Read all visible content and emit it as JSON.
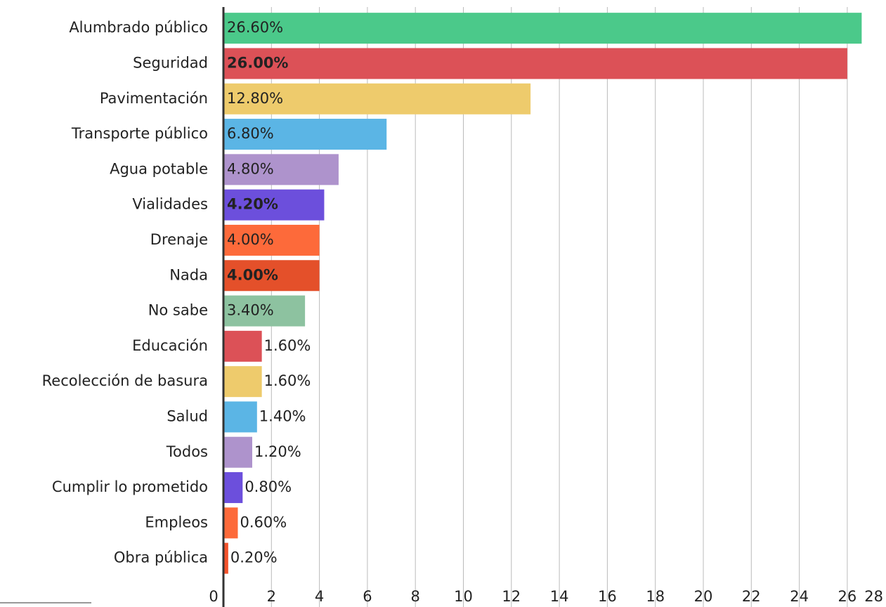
{
  "chart_data": {
    "type": "barh",
    "categories": [
      "Alumbrado público",
      "Seguridad",
      "Pavimentación",
      "Transporte público",
      "Agua potable",
      "Vialidades",
      "Drenaje",
      "Nada",
      "No sabe",
      "Educación",
      "Recolección de basura",
      "Salud",
      "Todos",
      "Cumplir lo prometido",
      "Empleos",
      "Obra pública"
    ],
    "values": [
      26.6,
      26.0,
      12.8,
      6.8,
      4.8,
      4.2,
      4.0,
      4.0,
      3.4,
      1.6,
      1.6,
      1.4,
      1.2,
      0.8,
      0.6,
      0.2
    ],
    "value_labels": [
      "26.60%",
      "26.00%",
      "12.80%",
      "6.80%",
      "4.80%",
      "4.20%",
      "4.00%",
      "4.00%",
      "3.40%",
      "1.60%",
      "1.60%",
      "1.40%",
      "1.20%",
      "0.80%",
      "0.60%",
      "0.20%"
    ],
    "colors": [
      "#4bc98a",
      "#dc5157",
      "#eecb6c",
      "#5bb5e5",
      "#ae93cc",
      "#6c4fdc",
      "#fd6a3a",
      "#e4502a",
      "#8dc2a0",
      "#dc5157",
      "#eecb6c",
      "#5bb5e5",
      "#ae93cc",
      "#6c4fdc",
      "#fd6a3a",
      "#f3522b"
    ],
    "value_label_colors": [
      "#111111",
      "#ffffff",
      "#111111",
      "#111111",
      "#111111",
      "#ffffff",
      "#111111",
      "#ffffff",
      "#111111",
      "#111111",
      "#111111",
      "#111111",
      "#111111",
      "#111111",
      "#111111",
      "#111111"
    ],
    "xlim": [
      0,
      28
    ],
    "xticks": [
      0,
      2,
      4,
      6,
      8,
      10,
      12,
      14,
      16,
      18,
      20,
      22,
      24,
      26,
      28
    ],
    "grid": true
  }
}
